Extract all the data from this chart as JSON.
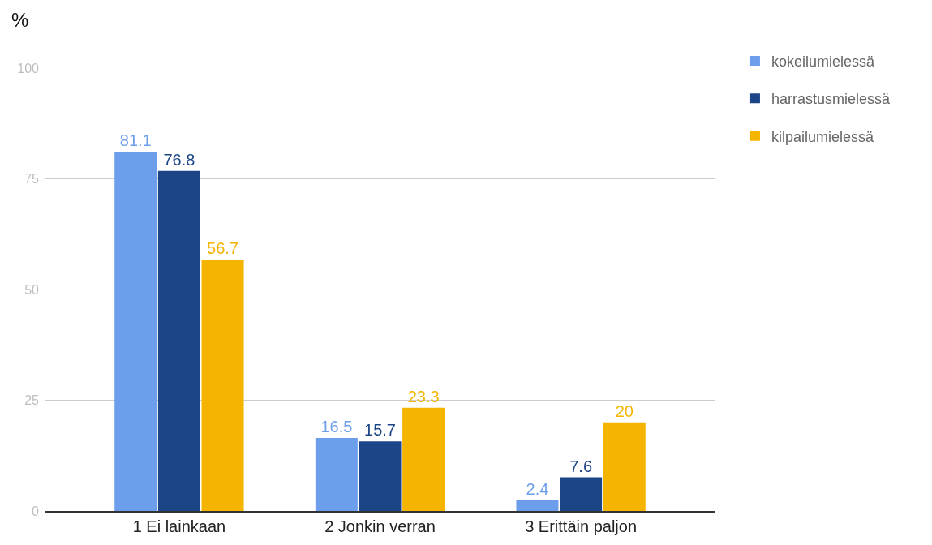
{
  "chart_data": {
    "type": "bar",
    "ylabel": "%",
    "categories": [
      "1 Ei lainkaan",
      "2 Jonkin verran",
      "3 Erittäin paljon"
    ],
    "series": [
      {
        "name": "kokeilumielessä",
        "color": "#6d9eeb",
        "values": [
          81.1,
          16.5,
          2.4
        ]
      },
      {
        "name": "harrastusmielessä",
        "color": "#1c4587",
        "values": [
          76.8,
          15.7,
          7.6
        ]
      },
      {
        "name": "kilpailumielessä",
        "color": "#f4b400",
        "values": [
          56.7,
          23.3,
          20
        ]
      }
    ],
    "ylim": [
      0,
      100
    ],
    "yticks": [
      0,
      25,
      50,
      75,
      100
    ],
    "grid": "y",
    "legend": "top right",
    "data_labels": true
  }
}
